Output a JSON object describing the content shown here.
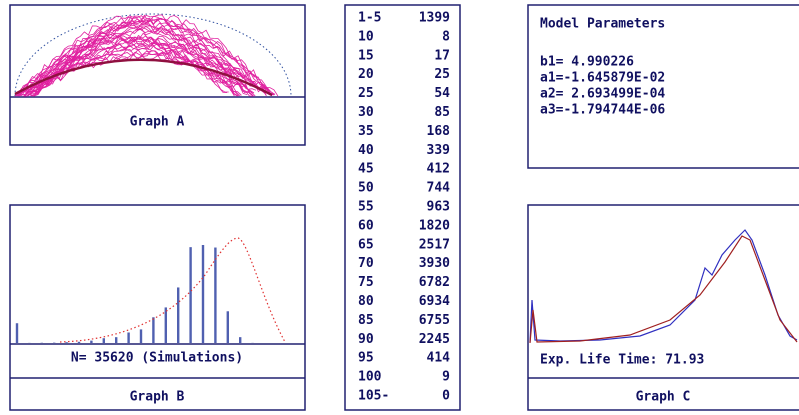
{
  "graph_a": {
    "label": "Graph A"
  },
  "graph_b": {
    "label": "Graph B",
    "caption": "N= 35620 (Simulations)"
  },
  "graph_c": {
    "label": "Graph C",
    "caption": "Exp. Life Time: 71.93"
  },
  "table": {
    "rows": [
      [
        "1-5",
        1399
      ],
      [
        "10",
        8
      ],
      [
        "15",
        17
      ],
      [
        "20",
        25
      ],
      [
        "25",
        54
      ],
      [
        "30",
        85
      ],
      [
        "35",
        168
      ],
      [
        "40",
        339
      ],
      [
        "45",
        412
      ],
      [
        "50",
        744
      ],
      [
        "55",
        963
      ],
      [
        "60",
        1820
      ],
      [
        "65",
        2517
      ],
      [
        "70",
        3930
      ],
      [
        "75",
        6782
      ],
      [
        "80",
        6934
      ],
      [
        "85",
        6755
      ],
      [
        "90",
        2245
      ],
      [
        "95",
        414
      ],
      [
        "100",
        9
      ],
      [
        "105-",
        0
      ]
    ]
  },
  "parameters": {
    "title": "Model Parameters",
    "lines": [
      "b1= 4.990226",
      "a1=-1.645879E-02",
      "a2= 2.693499E-04",
      "a3=-1.794744E-06"
    ]
  }
}
